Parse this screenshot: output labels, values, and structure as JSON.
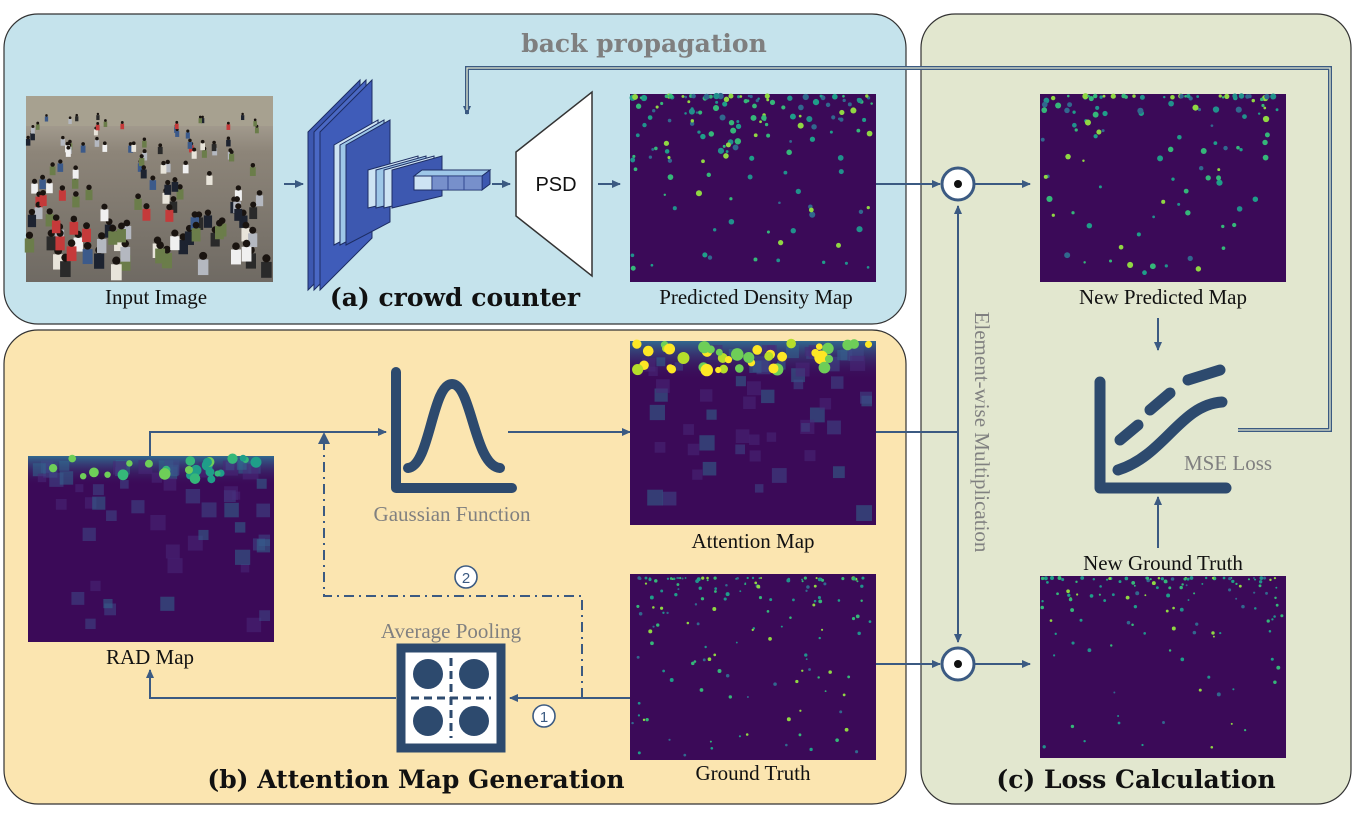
{
  "panels": {
    "crowd_counter": {
      "title": "(a) crowd counter",
      "bg": "#c5e3ec"
    },
    "attention": {
      "title": "(b) Attention Map Generation",
      "bg": "#fbe5b0"
    },
    "loss": {
      "title": "(c) Loss Calculation",
      "bg": "#e2e7cf"
    }
  },
  "labels": {
    "back_propagation": "back propagation",
    "input_image": "Input Image",
    "psd": "PSD",
    "predicted_density_map": "Predicted Density Map",
    "new_predicted_map": "New Predicted Map",
    "element_wise": "Element-wise Multiplication",
    "mse_loss": "MSE Loss",
    "new_ground_truth": "New Ground Truth",
    "gaussian_function": "Gaussian Function",
    "attention_map": "Attention Map",
    "rad_map": "RAD Map",
    "average_pooling": "Average Pooling",
    "ground_truth": "Ground Truth",
    "step_1": "1",
    "step_2": "2"
  },
  "colors": {
    "arrow": "#3b5a82",
    "icon": "#2d4a6e",
    "map_bg": "#3b0a58",
    "accent_green": "#35b779",
    "accent_yellow": "#fde725"
  }
}
